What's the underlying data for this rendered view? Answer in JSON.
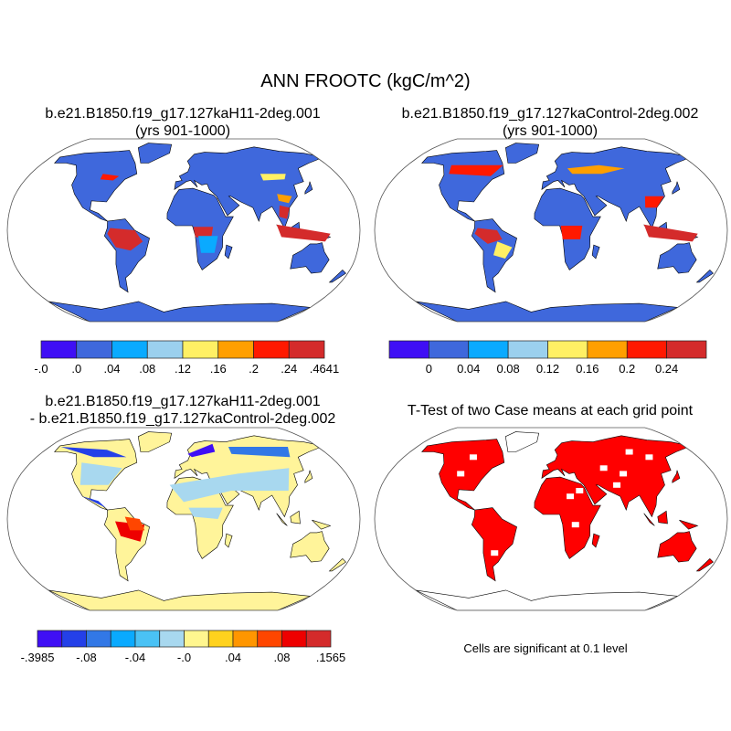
{
  "figure": {
    "title": "ANN FROOTC (kgC/m^2)",
    "panels": [
      {
        "title_line1": "b.e21.B1850.f19_g17.127kaH11-2deg.001",
        "title_line2": "(yrs 901-1000)",
        "land_color": "#3f68dc",
        "colorbar": {
          "colors": [
            "#3f0ff5",
            "#3f68dc",
            "#0aaaff",
            "#9bd0ee",
            "#fff064",
            "#ff9f00",
            "#ff1900",
            "#d42b2b"
          ],
          "labels": [
            "-.0",
            ".0",
            ".04",
            ".08",
            ".12",
            ".16",
            ".2",
            ".24",
            ".4641"
          ]
        }
      },
      {
        "title_line1": "b.e21.B1850.f19_g17.127kaControl-2deg.002",
        "title_line2": "(yrs 901-1000)",
        "land_color": "#3f68dc",
        "colorbar": {
          "colors": [
            "#3f0ff5",
            "#3f68dc",
            "#0aaaff",
            "#9bd0ee",
            "#fff064",
            "#ff9f00",
            "#ff1900",
            "#d42b2b"
          ],
          "labels": [
            "0",
            "0.04",
            "0.08",
            "0.12",
            "0.16",
            "0.2",
            "0.24"
          ]
        }
      },
      {
        "title_line1": "b.e21.B1850.f19_g17.127kaH11-2deg.001",
        "title_line2": "- b.e21.B1850.f19_g17.127kaControl-2deg.002",
        "land_color": "#fff49a",
        "colorbar": {
          "colors": [
            "#3f0ff5",
            "#2440e8",
            "#3278e6",
            "#0aaaff",
            "#4ac2f5",
            "#a8d8ef",
            "#fff68f",
            "#ffd21e",
            "#ff9600",
            "#ff4600",
            "#ee0000",
            "#d42b2b"
          ],
          "labels": [
            "-.3985",
            "-.08",
            "-.04",
            "-.0",
            ".04",
            ".08",
            ".1565"
          ]
        }
      },
      {
        "title_line1": "T-Test of two Case means at each grid point",
        "land_color": "#ff0000",
        "note": "Cells are significant at 0.1 level"
      }
    ]
  }
}
